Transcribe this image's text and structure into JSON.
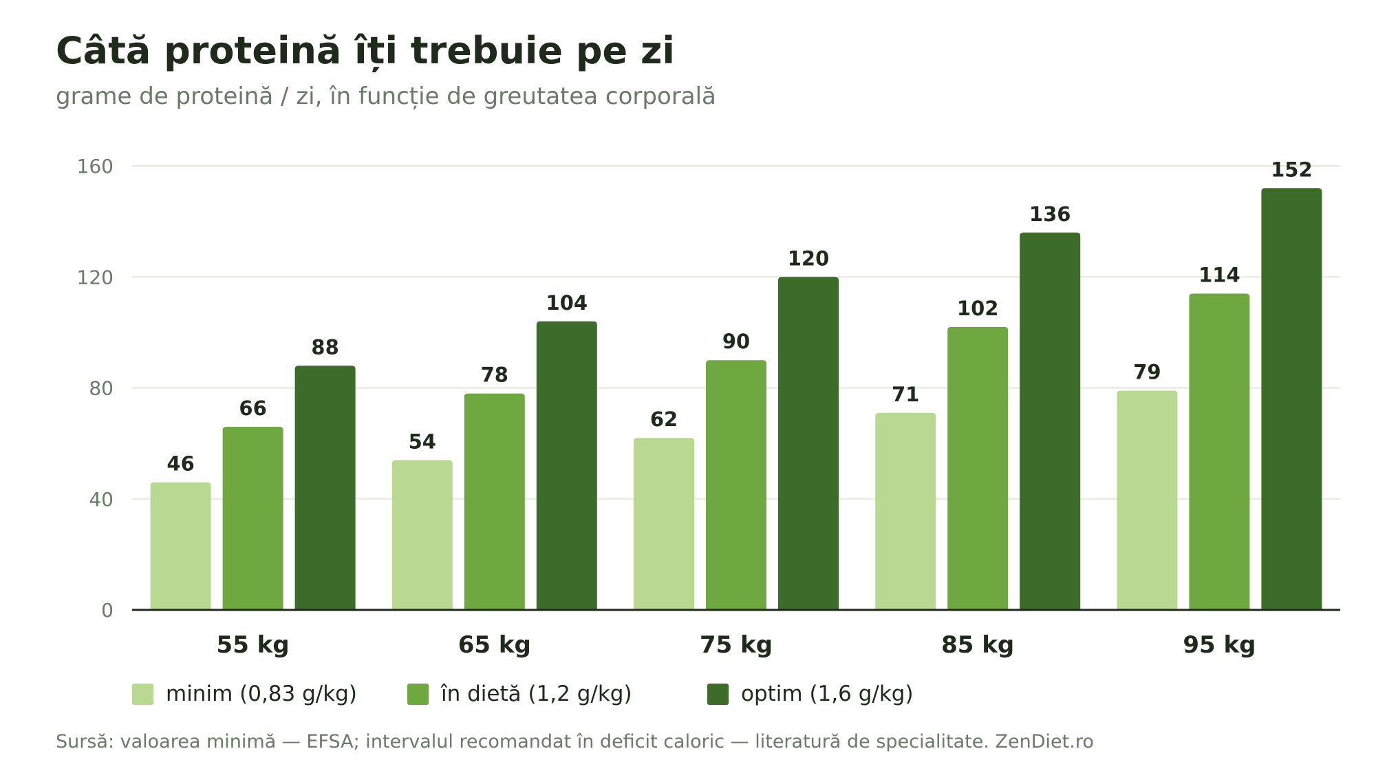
{
  "header": {
    "title": "Câtă proteină îți trebuie pe zi",
    "subtitle": "grame de proteină / zi, în funcție de greutatea corporală"
  },
  "chart_data": {
    "type": "bar",
    "categories": [
      "55 kg",
      "65 kg",
      "75 kg",
      "85 kg",
      "95 kg"
    ],
    "series": [
      {
        "name": "minim (0,83 g/kg)",
        "values": [
          46,
          54,
          62,
          71,
          79
        ],
        "color": "#b9d993"
      },
      {
        "name": "în dietă (1,2 g/kg)",
        "values": [
          66,
          78,
          90,
          102,
          114
        ],
        "color": "#6fa841"
      },
      {
        "name": "optim (1,6 g/kg)",
        "values": [
          88,
          104,
          120,
          136,
          152
        ],
        "color": "#3d6b2a"
      }
    ],
    "ylim": [
      0,
      160
    ],
    "yticks": [
      0,
      40,
      80,
      120,
      160
    ],
    "grid": true,
    "legend_position": "bottom"
  },
  "footer": {
    "source": "Sursă: valoarea minimă — EFSA; intervalul recomandat în deficit caloric — literatură de specialitate. ZenDiet.ro"
  }
}
